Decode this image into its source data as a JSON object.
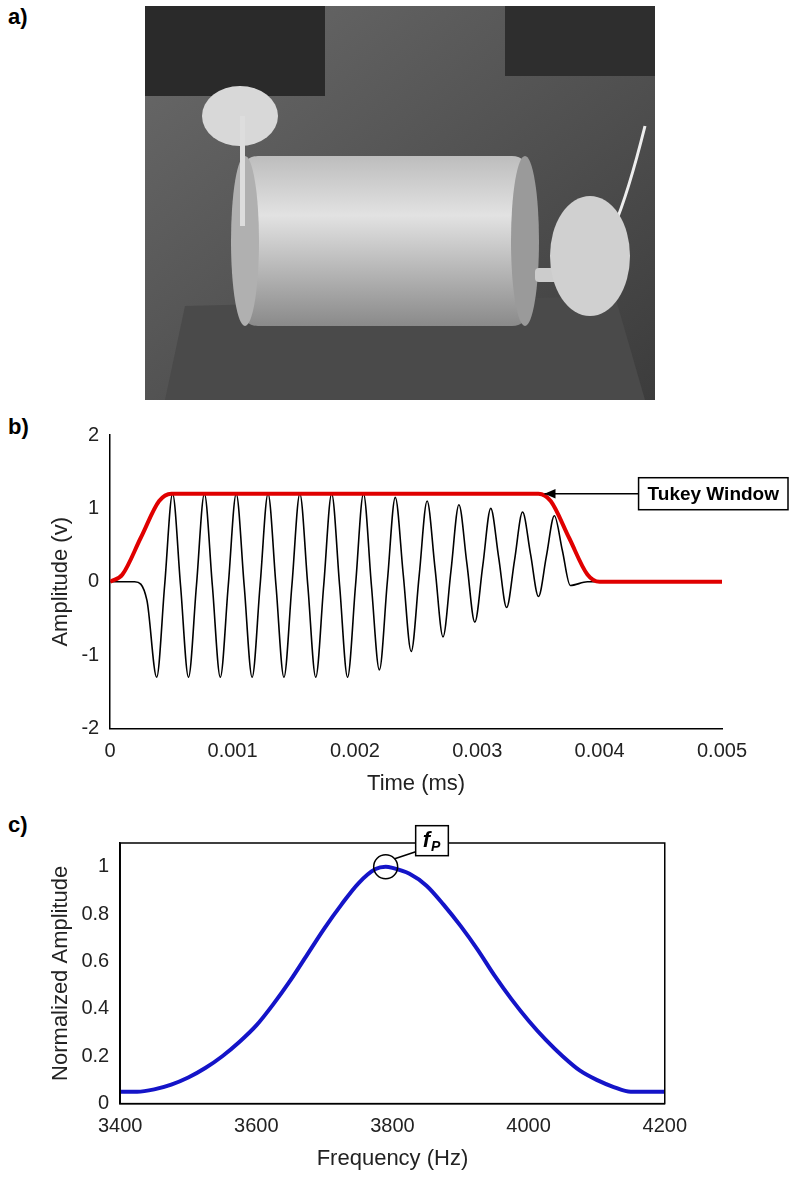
{
  "photo_panel": {
    "panel_label": "a)"
  },
  "chart_data": [
    {
      "type": "line",
      "panel_label": "b)",
      "x_label": "Time (ms)",
      "y_label": "Amplitude (v)",
      "xlim": [
        0,
        0.005
      ],
      "xticks": [
        0,
        0.001,
        0.002,
        0.003,
        0.004,
        0.005
      ],
      "ylim": [
        -2,
        2
      ],
      "yticks": [
        -2,
        -1,
        0,
        1,
        2
      ],
      "grid": false,
      "series": [
        {
          "color": "#000000",
          "x": [
            0,
            0.0002,
            0.0003,
            0.00038,
            0.000445,
            0.00051,
            0.000575,
            0.00064,
            0.000705,
            0.00077,
            0.000835,
            0.0009,
            0.000965,
            0.00103,
            0.001095,
            0.00116,
            0.001225,
            0.00129,
            0.001355,
            0.00142,
            0.001485,
            0.00155,
            0.001615,
            0.00168,
            0.001745,
            0.00181,
            0.001875,
            0.00194,
            0.002005,
            0.00207,
            0.002135,
            0.0022,
            0.002265,
            0.00233,
            0.002395,
            0.00246,
            0.002525,
            0.00259,
            0.002655,
            0.00272,
            0.002785,
            0.00285,
            0.002915,
            0.00298,
            0.003045,
            0.00311,
            0.003175,
            0.00324,
            0.003305,
            0.00337,
            0.003435,
            0.0035,
            0.003565,
            0.00363,
            0.003695,
            0.00376,
            0.0039,
            0.005
          ],
          "values": [
            0,
            0,
            -0.25,
            -1.3,
            -0.05,
            1.2,
            -0.05,
            -1.3,
            -0.05,
            1.2,
            -0.05,
            -1.3,
            -0.05,
            1.2,
            -0.05,
            -1.3,
            -0.05,
            1.2,
            -0.05,
            -1.3,
            -0.05,
            1.2,
            -0.05,
            -1.3,
            -0.05,
            1.2,
            -0.05,
            -1.3,
            -0.05,
            1.2,
            -0.05,
            -1.2,
            0,
            1.15,
            0.1,
            -0.95,
            0.08,
            1.1,
            0.18,
            -0.75,
            0.15,
            1.05,
            0.25,
            -0.55,
            0.22,
            1.0,
            0.33,
            -0.35,
            0.3,
            0.95,
            0.38,
            -0.2,
            0.35,
            0.9,
            0.43,
            -0.05,
            0,
            0
          ]
        },
        {
          "color": "#e00000",
          "x": [
            0,
            0.0001,
            0.00025,
            0.0004,
            0.0005,
            0.0035,
            0.0036,
            0.00375,
            0.0039,
            0.004,
            0.005
          ],
          "values": [
            0,
            0.1,
            0.6,
            1.1,
            1.2,
            1.2,
            1.1,
            0.6,
            0.1,
            0,
            0
          ]
        }
      ],
      "annotations": [
        {
          "text": "Tukey Window"
        }
      ]
    },
    {
      "type": "line",
      "panel_label": "c)",
      "x_label": "Frequency (Hz)",
      "y_label": "Normalized Amplitude",
      "xlim": [
        3400,
        4200
      ],
      "xticks": [
        3400,
        3600,
        3800,
        4000,
        4200
      ],
      "ylim": [
        0,
        1.1
      ],
      "yticks": [
        0,
        0.2,
        0.4,
        0.6,
        0.8,
        1
      ],
      "grid": false,
      "color": "#1414c8",
      "x": [
        3400,
        3425,
        3450,
        3475,
        3500,
        3525,
        3550,
        3575,
        3600,
        3625,
        3650,
        3675,
        3700,
        3725,
        3750,
        3775,
        3790,
        3800,
        3825,
        3850,
        3875,
        3900,
        3925,
        3950,
        3975,
        4000,
        4025,
        4050,
        4075,
        4100,
        4125,
        4150,
        4175,
        4200
      ],
      "values": [
        0.05,
        0.05,
        0.06,
        0.08,
        0.11,
        0.15,
        0.2,
        0.26,
        0.33,
        0.42,
        0.52,
        0.63,
        0.74,
        0.84,
        0.93,
        0.99,
        1.0,
        0.995,
        0.97,
        0.92,
        0.84,
        0.75,
        0.65,
        0.54,
        0.44,
        0.35,
        0.27,
        0.2,
        0.14,
        0.1,
        0.07,
        0.05,
        0.05,
        0.05
      ],
      "annotations": [
        {
          "text": "fP"
        }
      ]
    }
  ]
}
